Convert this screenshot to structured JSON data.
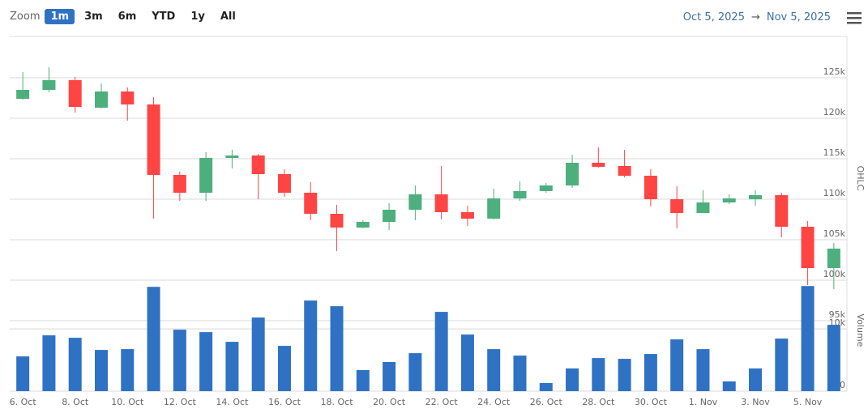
{
  "toolbar": {
    "zoom_label": "Zoom",
    "buttons": [
      "1m",
      "3m",
      "6m",
      "YTD",
      "1y",
      "All"
    ],
    "selected": 0,
    "range_from": "Oct 5, 2025",
    "arrow": "→",
    "range_to": "Nov 5, 2025"
  },
  "chart_data": [
    {
      "type": "candlestick",
      "y_title": "OHLC",
      "up_color": "#4caf7d",
      "down_color": "#ff4444",
      "open": [
        122400,
        123500,
        124700,
        121300,
        123300,
        121700,
        113000,
        110800,
        115100,
        115400,
        113100,
        110800,
        108200,
        106500,
        107200,
        108700,
        110600,
        108400,
        107600,
        110100,
        111000,
        111700,
        114500,
        114100,
        112900,
        110000,
        108300,
        109600,
        110000,
        110500,
        106600,
        101500
      ],
      "high": [
        125700,
        126300,
        125100,
        124300,
        123800,
        122600,
        113400,
        115800,
        116100,
        115600,
        113700,
        112100,
        109300,
        107400,
        109500,
        111700,
        114100,
        109200,
        111300,
        112200,
        112000,
        115500,
        116400,
        116100,
        113700,
        111600,
        111100,
        110600,
        111100,
        110800,
        107300,
        104600
      ],
      "low": [
        122300,
        123200,
        120700,
        121200,
        119700,
        107600,
        109800,
        109800,
        113800,
        110000,
        110300,
        107400,
        103600,
        106400,
        106200,
        107400,
        107500,
        106700,
        107500,
        109800,
        110800,
        111400,
        113900,
        112700,
        109100,
        106400,
        108300,
        109400,
        109200,
        105300,
        99400,
        98900
      ],
      "close": [
        123500,
        124700,
        121400,
        123300,
        121700,
        113000,
        110800,
        115100,
        115400,
        113100,
        110800,
        108200,
        106500,
        107200,
        108700,
        110600,
        108400,
        107600,
        110100,
        111000,
        111700,
        114500,
        114000,
        112900,
        110000,
        108300,
        109600,
        110100,
        110500,
        106600,
        101500,
        103900
      ],
      "ylim": [
        94900,
        130100
      ],
      "yticks": [
        {
          "value": 95000,
          "label": "95k"
        },
        {
          "value": 100000,
          "label": "100k"
        },
        {
          "value": 105000,
          "label": "105k"
        },
        {
          "value": 110000,
          "label": "110k"
        },
        {
          "value": 115000,
          "label": "115k"
        },
        {
          "value": 120000,
          "label": "120k"
        },
        {
          "value": 125000,
          "label": "125k"
        }
      ],
      "grid": true
    },
    {
      "type": "bar",
      "y_title": "Volume",
      "color": "#2f72c4",
      "categories": [
        "6. Oct",
        null,
        "8. Oct",
        null,
        "10. Oct",
        null,
        "12. Oct",
        null,
        "14. Oct",
        null,
        "16. Oct",
        null,
        "18. Oct",
        null,
        "20. Oct",
        null,
        "22. Oct",
        null,
        "24. Oct",
        null,
        "26. Oct",
        null,
        "28. Oct",
        null,
        "30. Oct",
        null,
        "1. Nov",
        null,
        "3. Nov",
        null,
        "5. Nov",
        null
      ],
      "values": [
        5580,
        8960,
        8570,
        6620,
        6750,
        16750,
        9870,
        9480,
        7920,
        11820,
        7270,
        14550,
        13640,
        3380,
        4680,
        6100,
        12730,
        9090,
        6750,
        5710,
        1300,
        3640,
        5320,
        5190,
        5970,
        8310,
        6750,
        1560,
        3640,
        8440,
        16880,
        10650
      ],
      "ylim": [
        0,
        23800
      ],
      "yticks": [
        0,
        {
          "value": 10000,
          "label": "10k"
        }
      ],
      "grid": true
    }
  ]
}
